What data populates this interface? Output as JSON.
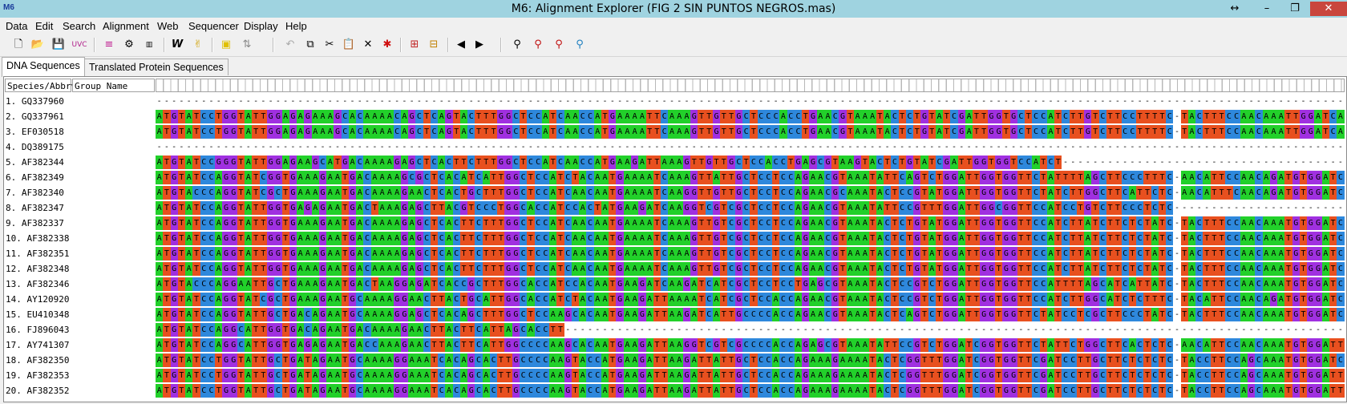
{
  "window": {
    "title": "M6: Alignment Explorer (FIG 2 SIN  PUNTOS NEGROS.mas)",
    "app_icon_text": "M6",
    "controls": [
      "↔",
      "–",
      "❐",
      "✕"
    ]
  },
  "menu": [
    "Data",
    "Edit",
    "Search",
    "Alignment",
    "Web",
    "Sequencer",
    "Display",
    "Help"
  ],
  "toolbar_icons": [
    "new-icon",
    "open-icon",
    "save-icon",
    "uvc-icon",
    "align-icon",
    "settings-icon",
    "sequencer-icon",
    "w-icon",
    "muscle-icon",
    "mark-icon",
    "split-icon",
    "undo-icon",
    "copy-icon",
    "cut-icon",
    "paste-icon",
    "delete-icon",
    "delete-gap-icon",
    "insert-icon",
    "insert-gap-icon",
    "prev-icon",
    "next-icon",
    "find-icon",
    "find-prev-icon",
    "find-next-icon",
    "find-motif-icon"
  ],
  "tabs": [
    "DNA Sequences",
    "Translated Protein Sequences"
  ],
  "columns": {
    "species": "Species/Abbrv",
    "group": "Group Name"
  },
  "nucleotide_colors": {
    "A": "#22d02a",
    "T": "#e8501f",
    "G": "#a030e0",
    "C": "#2e88dc"
  },
  "rows": [
    {
      "label": "1. GQ337960",
      "seq": "----------------------------------------------------------------------------------------------------------------------------------------------------------------"
    },
    {
      "label": "2. GQ337961",
      "seq": "ATGTATCCTGGTATTGGAGAGAAAGCACAAAACAGCTCAGTACTTTGGCTCCATCAACCATGAAAATTCAAAGTTGTTGCTCCCACCTGAACGTAAATACTCTGTATCGATTGGTGCTCCATCTTGTCTTCCTTTTC-TACTTTCCAACAAATTGGATCACAAG"
    },
    {
      "label": "3. EF030518",
      "seq": "ATGTATCCTGGTATTGGAGAGAAAGCACAAAACAGCTCAGTACTTTGGCTCCATCAACCATGAAAATTCAAAGTTGTTGCTCCCACCTGAACGTAAATACTCTGTATCGATTGGTGCTCCATCTTGTCTTCCTTTTC-TACTTTCCAACAAATTGGATCACAAG"
    },
    {
      "label": "4. DQ389175",
      "seq": "----------------------------------------------------------------------------------------------------------------------------------------------------------------"
    },
    {
      "label": "5. AF382344",
      "seq": "ATGTATCCGGGTATTGGAGAAGCATGACAAAAGAGCTCACTTCTTTGGCTCCATCAACCATGAAGATTAAAGTTGTTGCTCCACCTGAGCGTAAGTACTCTGTATCGATTGGTGGTCCATCT----------------------------------------"
    },
    {
      "label": "6. AF382349",
      "seq": "ATGTATCCAGGTATCGGTGAAAGAATGACAAAAGCGCTCACATCATTGGCTCCATCTACAATGAAAATCAAAGTTATTGCTCCTCCAGAACGTAAATATTCAGTCTGGATTGGTGGTTCTATTTTAGCTTCCCTTTC-AACATTCCAACAGATGTGGATCACAAG"
    },
    {
      "label": "7. AF382340",
      "seq": "ATGTACCCAGGTATCGCTGAAAGAATGACAAAAGAACTCACTGCTTTGGCTCCATCAACAATGAAAATCAAGGTTGTTGCTCCTCCAGAACGCAAATACTCCGTATGGATTGGTGGTTCTATCTTGGCTTCATTCTC-AACATTTCAACAGATGTGGATCACAAG"
    },
    {
      "label": "8. AF382347",
      "seq": "ATGTATCCAGGTATTGGTGAGAGAATGACTAAAGAGCTTACGTCCCTGGCACCATCCACTATGAAGATCAAGGTCGTCGCTCCTCCAGAACGTAAATATTCCGTTTGGATTGGCGGTTCCATCCTGTCTTCCCTCTC---------------------------"
    },
    {
      "label": "9. AF382337",
      "seq": "ATGTATCCAGGTATTGGTGAAAGAATGACAAAAGAGCTCACTTCTTTGGCTCCATCAACAATGAAAATCAAAGTTGTCGCTCCTCCAGAACGTAAATACTCTGTATGGATTGGTGGTTCCATCTTATCTTCTCTATC-TACTTTCCAACAAATGTGGATCACTAG"
    },
    {
      "label": "10. AF382338",
      "seq": "ATGTATCCAGGTATTGGTGAAAGAATGACAAAAGAGCTCACTTCTTTGGCTCCATCAACAATGAAAATCAAAGTTGTCGCTCCTCCAGAACGTAAATACTCTGTATGGATTGGTGGTTCCATCTTATCTTCTCTATC-TACTTTCCAACAAATGTGGATCACTAG"
    },
    {
      "label": "11. AF382351",
      "seq": "ATGTATCCAGGTATTGGTGAAAGAATGACAAAAGAGCTCACTTCTTTGGCTCCATCAACAATGAAAATCAAAGTTGTCGCTCCTCCAGAACGTAAATACTCTGTATGGATTGGTGGTTCCATCTTATCTTCTCTATC-TACTTTCCAACAAATGTGGATCACTAG"
    },
    {
      "label": "12. AF382348",
      "seq": "ATGTATCCAGGTATTGGTGAAAGAATGACAAAAGAGCTCACTTCTTTGGCTCCATCAACAATGAAAATCAAAGTTGTCGCTCCTCCAGAACGTAAATACTCTGTATGGATTGGTGGTTCCATCTTATCTTCTCTATC-TACTTTCCAACAAATGTGGATCACAAG"
    },
    {
      "label": "13. AF382346",
      "seq": "ATGTACCCAGGAATTGCTGAAAGAATGACTAAGGAGATCACCGCTTTGGCACCATCCACAATGAAGATCAAGATCATCGCTCCTCCTGAGCGTAAATACTCCGTCTGGATTGGTGGTTCCATTTTAGCATCATTATC-TACTTTCCAACAAATGTGGATCAGAAG"
    },
    {
      "label": "14. AY120920",
      "seq": "ATGTATCCAGGTATCGCTGAAAGAATGCAAAAGGAACTTACTGCATTGGCACCATCTACAATGAAGATTAAAATCATCGCTCCACCAGAACGTAAATACTCCGTCTGGATTGGTGGTTCCATCTTGGCATCTCTTTC-TACATTCCAACAGATGTGGATCTCAAG"
    },
    {
      "label": "15. EU410348",
      "seq": "ATGTATCCAGGTATTGCTGACAGAATGCAAAAGGAGCTCACAGCTTTGGCTCCAAGCACAATGAAGATTAAGATCATTGCCCCACCAGAACGTAAATACTCAGTCTGGATTGGTGGTTCTATCCTCGCTTCCCTATC-TACTTTCCAACAAATGTGGATCACA--"
    },
    {
      "label": "16. FJ896043",
      "seq": "ATGTATCCAGGCATTGGTGACAGAATGACAAAAGAACTTACTTCATTAGCACCTT------------------------------------------------------------------------------------------------------------"
    },
    {
      "label": "17. AY741307",
      "seq": "ATGTATCCAGGCATTGGTGAGAGAATGACCAAAGAACTTACTTCATTGGCCCCAAGCACAATGAAGATTAAGGTCGTCGCCCCACCAGAGCGTAAATATTCCGTCTGGATCGGTGGTTCTATTCTGGCTTCACTCTC-AACATTCCAACAAATGTGGATTTCAAA"
    },
    {
      "label": "18. AF382350",
      "seq": "ATGTATCCTGGTATTGCTGATAGAATGCAAAAGGAAATCACAGCACTTGCCCCAAGTACCATGAAGATTAAGATTATTGCTCCACCAGAAAGAAAATACTCGGTTTGGATCGGTGGTTCGATCCTTGCTTCTCTCTC-TACCTTCCAGCAAATGTGGATCAGTAA"
    },
    {
      "label": "19. AF382353",
      "seq": "ATGTATCCTGGTATTGCTGATAGAATGCAAAAGGAAATCACAGCACTTGCCCCAAGTACCATGAAGATTAAGATTATTGCTCCACCAGAAAGAAAATACTCGGTTTGGATCGGTGGTTCGATCCTTGCTTCTCTCTC-TACCTTCCAGCAAATGTGGATTTCAAA"
    },
    {
      "label": "20. AF382352",
      "seq": "ATGTATCCTGGTATTGCTGATAGAATGCAAAAGGAAATCACAGCACTTGCCCCAAGTACCATGAAGATTAAGATTATTGCTCCACCAGAAAGAAAATACTCGGTTTGGATCGGTGGTTCGATCCTTGCTTCTCTCTC-TACCTTCCAGCAAATGTGGATTTCAAA"
    }
  ]
}
